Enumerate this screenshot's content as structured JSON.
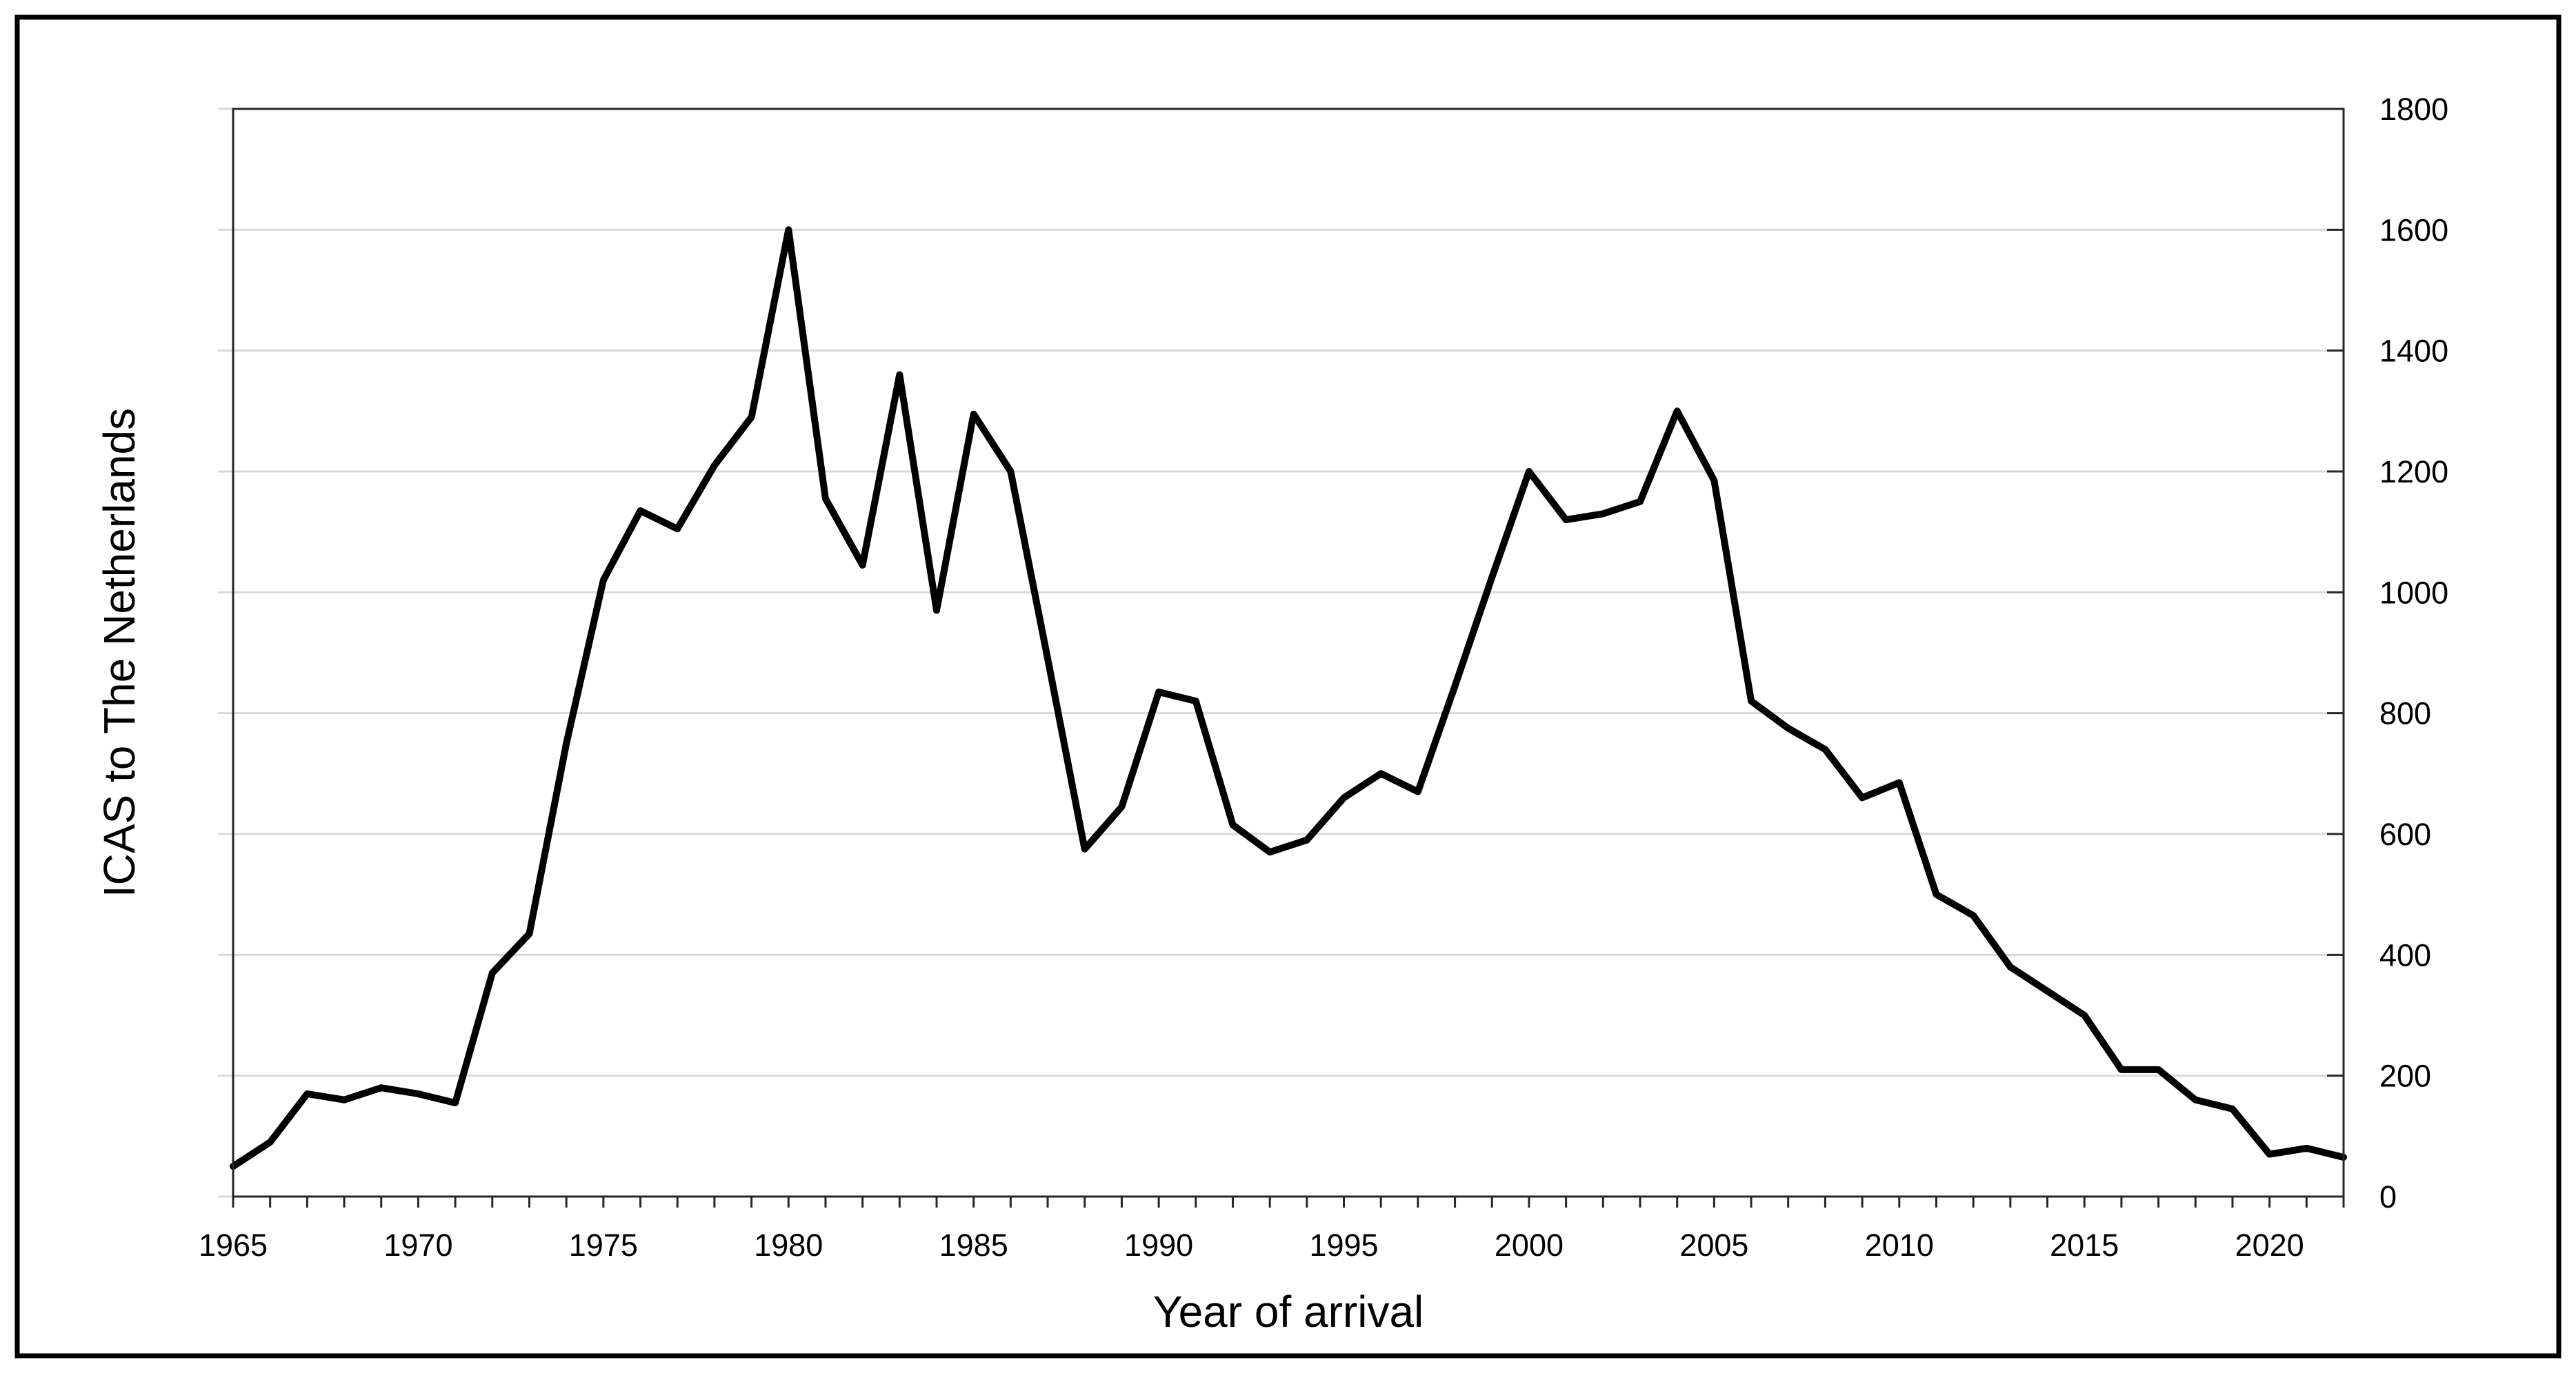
{
  "chart_data": {
    "type": "line",
    "title": "",
    "xlabel": "Year of arrival",
    "ylabel": "ICAS to The Netherlands",
    "series_name": "ICAS to The Netherlands",
    "x": [
      1965,
      1966,
      1967,
      1968,
      1969,
      1970,
      1971,
      1972,
      1973,
      1974,
      1975,
      1976,
      1977,
      1978,
      1979,
      1980,
      1981,
      1982,
      1983,
      1984,
      1985,
      1986,
      1987,
      1988,
      1989,
      1990,
      1991,
      1992,
      1993,
      1994,
      1995,
      1996,
      1997,
      1998,
      1999,
      2000,
      2001,
      2002,
      2003,
      2004,
      2005,
      2006,
      2007,
      2008,
      2009,
      2010,
      2011,
      2012,
      2013,
      2014,
      2015,
      2016,
      2017,
      2018,
      2019,
      2020,
      2021,
      2022
    ],
    "values": [
      50,
      90,
      170,
      160,
      180,
      170,
      155,
      370,
      435,
      750,
      1020,
      1135,
      1105,
      1210,
      1290,
      1600,
      1155,
      1045,
      1360,
      970,
      1295,
      1200,
      890,
      575,
      645,
      835,
      820,
      615,
      570,
      590,
      660,
      700,
      670,
      845,
      1025,
      1200,
      1120,
      1130,
      1150,
      1300,
      1185,
      820,
      775,
      740,
      660,
      685,
      500,
      465,
      380,
      340,
      300,
      210,
      210,
      160,
      145,
      70,
      80,
      65
    ],
    "xlim": [
      1965,
      2022
    ],
    "ylim": [
      0,
      1800
    ],
    "yticks": [
      0,
      200,
      400,
      600,
      800,
      1000,
      1200,
      1400,
      1600,
      1800
    ],
    "xticks_labeled": [
      1965,
      1970,
      1975,
      1980,
      1985,
      1990,
      1995,
      2000,
      2005,
      2010,
      2015,
      2020
    ],
    "xtick_minor_interval_years": 1,
    "y_axis_side": "right",
    "grid": "horizontal",
    "legend": "none",
    "colors": {
      "line": "#000000",
      "gridline": "#d9d9d9",
      "axis": "#262626",
      "text": "#000000",
      "background": "#ffffff",
      "outer_frame": "#000000"
    }
  }
}
